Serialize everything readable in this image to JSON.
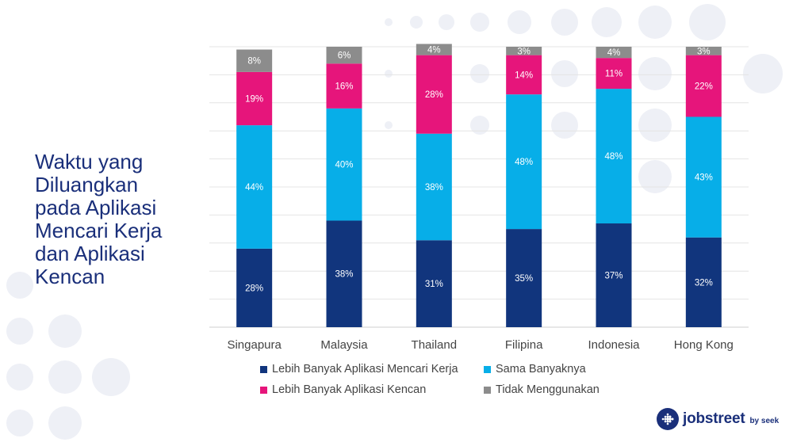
{
  "title": "Waktu yang\nDiluangkan\npada Aplikasi\nMencari Kerja\ndan Aplikasi\nKencan",
  "brand": {
    "name": "jobstreet",
    "byline": "by seek",
    "color": "#1a2f7a"
  },
  "chart_data": {
    "type": "bar",
    "stacked": true,
    "categories": [
      "Singapura",
      "Malaysia",
      "Thailand",
      "Filipina",
      "Indonesia",
      "Hong Kong"
    ],
    "ylim": [
      0,
      100
    ],
    "grid": true,
    "legend_position": "bottom",
    "series": [
      {
        "name": "Lebih Banyak Aplikasi Mencari Kerja",
        "color": "#11357d",
        "values": [
          28,
          38,
          31,
          35,
          37,
          32
        ],
        "labels": [
          "28%",
          "38%",
          "31%",
          "35%",
          "37%",
          "32%"
        ]
      },
      {
        "name": "Sama Banyaknya",
        "color": "#07aee8",
        "values": [
          44,
          40,
          38,
          48,
          48,
          43
        ],
        "labels": [
          "44%",
          "40%",
          "38%",
          "48%",
          "48%",
          "43%"
        ]
      },
      {
        "name": "Lebih Banyak Aplikasi Kencan",
        "color": "#e6157b",
        "values": [
          19,
          16,
          28,
          14,
          11,
          22
        ],
        "labels": [
          "19%",
          "16%",
          "28%",
          "14%",
          "11%",
          "22%"
        ]
      },
      {
        "name": "Tidak Menggunakan",
        "color": "#8c8c8c",
        "values": [
          8,
          6,
          4,
          3,
          4,
          3
        ],
        "labels": [
          "8%",
          "6%",
          "4%",
          "3%",
          "4%",
          "3%"
        ]
      }
    ]
  }
}
